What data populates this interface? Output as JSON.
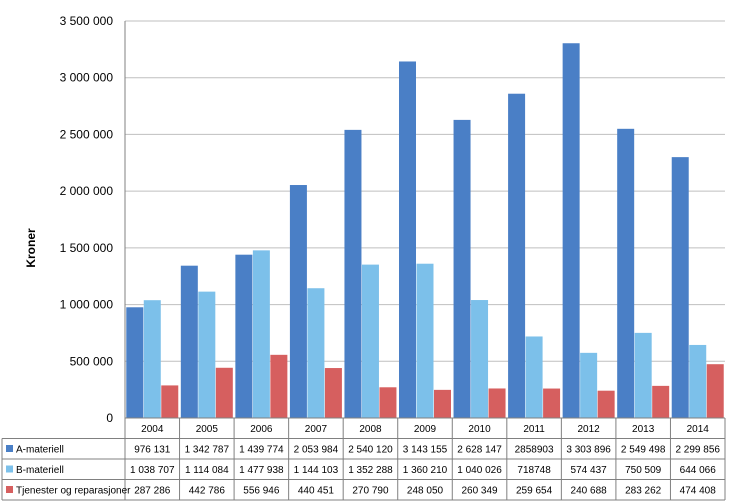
{
  "chart_data": {
    "type": "bar",
    "ylabel": "Kroner",
    "ylim": [
      0,
      3500000
    ],
    "yticks": [
      "0",
      "500 000",
      "1 000 000",
      "1 500 000",
      "2 000 000",
      "2 500 000",
      "3 000 000",
      "3 500 000"
    ],
    "ytick_values": [
      0,
      500000,
      1000000,
      1500000,
      2000000,
      2500000,
      3000000,
      3500000
    ],
    "grid": true,
    "legend": "data-table-below",
    "categories": [
      "2004",
      "2005",
      "2006",
      "2007",
      "2008",
      "2009",
      "2010",
      "2011",
      "2012",
      "2013",
      "2014"
    ],
    "series": [
      {
        "name": "A-materiell",
        "color": "#4a7fc6",
        "values": [
          976131,
          1342787,
          1439774,
          2053984,
          2540120,
          3143155,
          2628147,
          2858903,
          3303896,
          2549498,
          2299856
        ],
        "labels": [
          "976 131",
          "1 342 787",
          "1 439 774",
          "2 053 984",
          "2 540 120",
          "3 143 155",
          "2 628 147",
          "2858903",
          "3 303 896",
          "2 549 498",
          "2 299 856"
        ]
      },
      {
        "name": "B-materiell",
        "color": "#7cc0ea",
        "values": [
          1038707,
          1114084,
          1477938,
          1144103,
          1352288,
          1360210,
          1040026,
          718748,
          574437,
          750509,
          644066
        ],
        "labels": [
          "1 038 707",
          "1 114 084",
          "1 477 938",
          "1 144 103",
          "1 352 288",
          "1 360 210",
          "1 040 026",
          "718748",
          "574 437",
          "750 509",
          "644 066"
        ]
      },
      {
        "name": "Tjenester og reparasjoner",
        "color": "#d65f5f",
        "values": [
          287286,
          442786,
          556946,
          440451,
          270790,
          248050,
          260349,
          259654,
          240688,
          283262,
          474408
        ],
        "labels": [
          "287 286",
          "442 786",
          "556 946",
          "440 451",
          "270 790",
          "248 050",
          "260 349",
          "259 654",
          "240 688",
          "283 262",
          "474 408"
        ]
      }
    ]
  }
}
